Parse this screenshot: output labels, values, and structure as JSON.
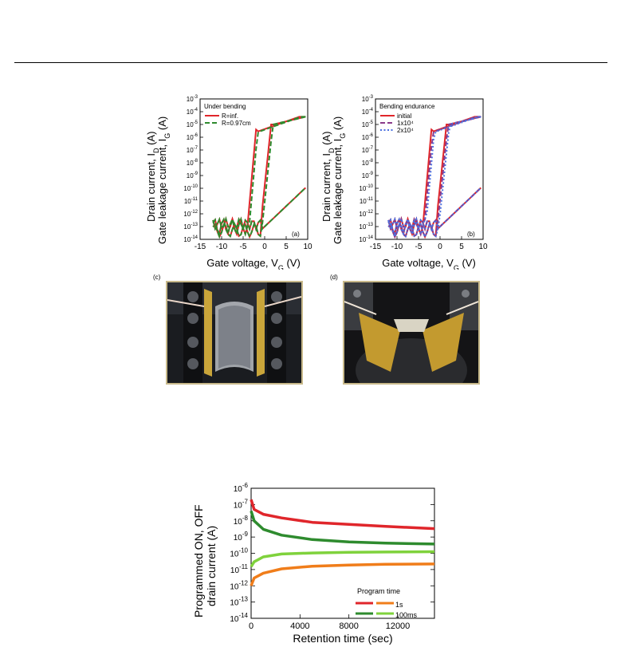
{
  "chart_data": [
    {
      "id": "a",
      "type": "line",
      "panel_label": "(a)",
      "xlabel": "Gate voltage, V",
      "xlabel_sub": "G",
      "xlabel_unit": " (V)",
      "ylabel_line1": "Drain current, I",
      "ylabel_line1_sub": "D",
      "ylabel_line1_unit": " (A)",
      "ylabel_line2": "Gate leakage current, I",
      "ylabel_line2_sub": "G",
      "ylabel_line2_unit": " (A)",
      "xlim": [
        -15,
        10
      ],
      "xticks": [
        "-15",
        "-10",
        "-5",
        "0",
        "5",
        "10"
      ],
      "yscale": "log",
      "ylim_exp": [
        -14,
        -3
      ],
      "legend_title": "Under bending",
      "legend_position": "top-left",
      "series": [
        {
          "name": "R=inf.",
          "color": "#e0262b",
          "dash": "solid"
        },
        {
          "name": "R=0.97cm",
          "color": "#2e8b2e",
          "dash": "dashed"
        }
      ]
    },
    {
      "id": "b",
      "type": "line",
      "panel_label": "(b)",
      "xlabel": "Gate voltage, V",
      "xlabel_sub": "G",
      "xlabel_unit": " (V)",
      "ylabel_line1": "Drain current, I",
      "ylabel_line1_sub": "D",
      "ylabel_line1_unit": " (A)",
      "ylabel_line2": "Gate leakage current, I",
      "ylabel_line2_sub": "G",
      "ylabel_line2_unit": " (A)",
      "xlim": [
        -15,
        10
      ],
      "xticks": [
        "-15",
        "-10",
        "-5",
        "0",
        "5",
        "10"
      ],
      "yscale": "log",
      "ylim_exp": [
        -14,
        -3
      ],
      "legend_title": "Bending endurance",
      "legend_position": "top-left",
      "series": [
        {
          "name": "initial",
          "color": "#e0262b",
          "dash": "solid"
        },
        {
          "name": "1x10⁴",
          "color": "#8a3a8a",
          "dash": "dashed"
        },
        {
          "name": "2x10⁴",
          "color": "#4a6fe0",
          "dash": "dotted"
        }
      ]
    },
    {
      "id": "retention",
      "type": "line",
      "xlabel": "Retention time (sec)",
      "ylabel_line1": "Programmed ON, OFF",
      "ylabel_line2": "drain current (A)",
      "xlim": [
        0,
        15000
      ],
      "xticks": [
        "0",
        "4000",
        "8000",
        "12000"
      ],
      "xtick_values": [
        0,
        4000,
        8000,
        12000
      ],
      "yscale": "log",
      "ylim_exp": [
        -14,
        -6
      ],
      "legend_title": "Program time",
      "legend_position": "bottom-right",
      "legend_rows": [
        "1s",
        "100ms"
      ],
      "series": [
        {
          "name": "1s ON",
          "color": "#e0262b",
          "x": [
            0,
            250,
            1000,
            2500,
            5000,
            8000,
            11000,
            15000
          ],
          "y": [
            2e-07,
            5e-08,
            2.5e-08,
            1.5e-08,
            8e-09,
            6e-09,
            4.5e-09,
            3.3e-09
          ]
        },
        {
          "name": "1s OFF",
          "color": "#f07d1a",
          "x": [
            0,
            250,
            1000,
            2500,
            5000,
            8000,
            11000,
            15000
          ],
          "y": [
            1e-12,
            3e-12,
            6e-12,
            1.1e-11,
            1.6e-11,
            1.9e-11,
            2.1e-11,
            2.2e-11
          ]
        },
        {
          "name": "100ms ON",
          "color": "#2e8b2e",
          "x": [
            0,
            250,
            1000,
            2500,
            5000,
            8000,
            11000,
            15000
          ],
          "y": [
            4e-08,
            1e-08,
            3e-09,
            1.3e-09,
            7e-10,
            5e-10,
            4.2e-10,
            3.7e-10
          ]
        },
        {
          "name": "100ms OFF",
          "color": "#7fd23c",
          "x": [
            0,
            250,
            1000,
            2500,
            5000,
            8000,
            11000,
            15000
          ],
          "y": [
            1.5e-11,
            3e-11,
            6e-11,
            9e-11,
            1.05e-10,
            1.15e-10,
            1.2e-10,
            1.25e-10
          ]
        }
      ]
    }
  ],
  "photos": [
    {
      "label": "(c)"
    },
    {
      "label": "(d)"
    }
  ]
}
